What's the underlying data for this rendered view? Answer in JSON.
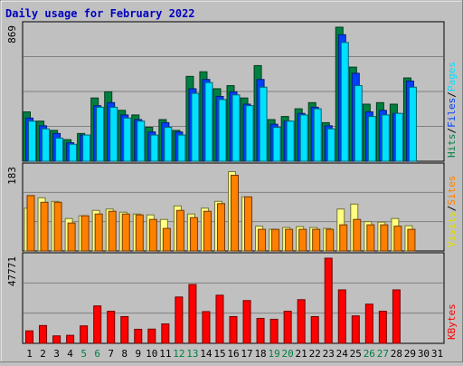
{
  "chart_data": {
    "type": "bar",
    "title": "Daily usage for February 2022",
    "x": [
      "1",
      "2",
      "3",
      "4",
      "5",
      "6",
      "7",
      "8",
      "9",
      "10",
      "11",
      "12",
      "13",
      "14",
      "15",
      "16",
      "17",
      "18",
      "19",
      "20",
      "21",
      "22",
      "23",
      "24",
      "25",
      "26",
      "27",
      "28",
      "29",
      "30",
      "31"
    ],
    "weekend_days": [
      "5",
      "6",
      "12",
      "13",
      "19",
      "20",
      "26",
      "27"
    ],
    "panels": [
      {
        "name": "hits-files-pages",
        "max_label": "869",
        "ylim": [
          0,
          869
        ],
        "axis_labels": [
          {
            "text": "Hits",
            "color": "#008040"
          },
          {
            "text": "/",
            "color": "#000000"
          },
          {
            "text": "Files",
            "color": "#0040ff"
          },
          {
            "text": "/",
            "color": "#000000"
          },
          {
            "text": "Pages",
            "color": "#00e0ff"
          }
        ],
        "series": [
          {
            "name": "Hits",
            "color": "#008040",
            "values": [
              320,
              260,
              200,
              140,
              180,
              410,
              450,
              330,
              300,
              220,
              270,
              200,
              550,
              580,
              470,
              490,
              410,
              620,
              270,
              290,
              340,
              380,
              250,
              869,
              610,
              370,
              380,
              370,
              540,
              0,
              0
            ]
          },
          {
            "name": "Files",
            "color": "#0040ff",
            "values": [
              280,
              230,
              180,
              120,
              170,
              360,
              380,
              300,
              270,
              190,
              250,
              190,
              470,
              530,
              420,
              450,
              370,
              530,
              240,
              260,
              310,
              350,
              230,
              820,
              570,
              320,
              330,
              310,
              520,
              0,
              0
            ]
          },
          {
            "name": "Pages",
            "color": "#00e0ff",
            "values": [
              260,
              210,
              150,
              110,
              170,
              350,
              350,
              280,
              260,
              170,
              220,
              170,
              440,
              510,
              400,
              430,
              360,
              480,
              220,
              260,
              300,
              340,
              210,
              770,
              490,
              290,
              300,
              310,
              480,
              0,
              0
            ]
          }
        ]
      },
      {
        "name": "visits-sites",
        "max_label": "183",
        "ylim": [
          0,
          183
        ],
        "axis_labels": [
          {
            "text": "Visits",
            "color": "#e0e000"
          },
          {
            "text": "/",
            "color": "#000000"
          },
          {
            "text": "Sites",
            "color": "#ff8000"
          }
        ],
        "series": [
          {
            "name": "Visits",
            "color": "#ffff80",
            "values": [
              95,
              118,
              110,
              72,
              78,
              90,
              93,
              86,
              82,
              80,
              70,
              100,
              82,
              95,
              110,
              176,
              120,
              55,
              48,
              52,
              54,
              52,
              50,
              93,
              104,
              65,
              64,
              72,
              56,
              0,
              0
            ]
          },
          {
            "name": "Sites",
            "color": "#ff8000",
            "values": [
              123,
              108,
              108,
              62,
              78,
              82,
              88,
              82,
              80,
              70,
              50,
              90,
              74,
              88,
              105,
              168,
              120,
              48,
              48,
              48,
              48,
              48,
              48,
              58,
              70,
              58,
              58,
              55,
              48,
              0,
              0
            ]
          }
        ]
      },
      {
        "name": "kbytes",
        "max_label": "47771",
        "ylim": [
          0,
          47771
        ],
        "axis_labels": [
          {
            "text": "KBytes",
            "color": "#ff0000"
          }
        ],
        "series": [
          {
            "name": "KBytes",
            "color": "#ff0000",
            "values": [
              7000,
              10000,
              4200,
              4500,
              9800,
              21000,
              18000,
              15000,
              7900,
              8000,
              10900,
              26000,
              33000,
              17800,
              27000,
              15000,
              24000,
              14000,
              13500,
              18000,
              24500,
              15000,
              47771,
              30000,
              15400,
              22000,
              18000,
              30000,
              0,
              0,
              0
            ]
          }
        ]
      }
    ],
    "grid": true
  }
}
